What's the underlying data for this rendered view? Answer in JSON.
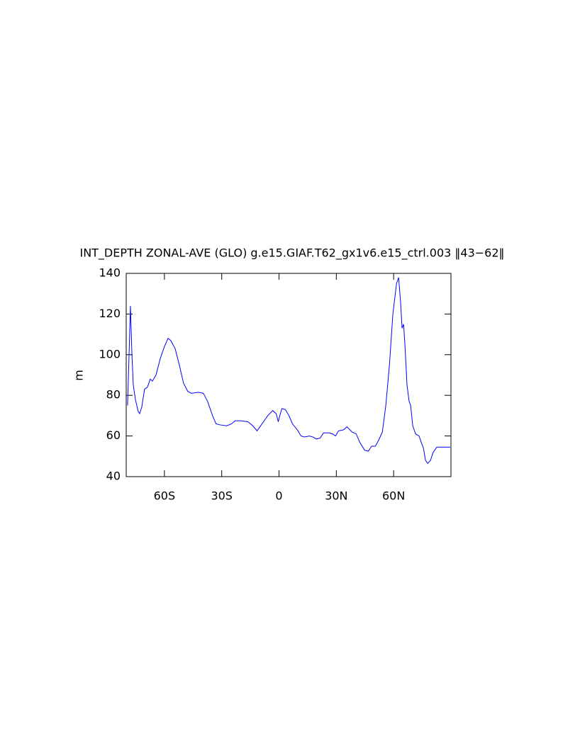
{
  "chart_data": {
    "type": "line",
    "title": "INT_DEPTH ZONAL-AVE (GLO) g.e15.GIAF.T62_gx1v6.e15_ctrl.003 ‖43−62‖",
    "y_label": "m",
    "x": [
      -79.3,
      -78.5,
      -77.8,
      -77.0,
      -76.3,
      -75.2,
      -73.7,
      -73.0,
      -71.9,
      -70.4,
      -68.9,
      -67.4,
      -66.3,
      -64.4,
      -62.2,
      -60,
      -58.1,
      -56.7,
      -54.4,
      -52.2,
      -50,
      -47.8,
      -45.9,
      -42.2,
      -39.6,
      -37.4,
      -34.8,
      -33.0,
      -31.1,
      -27.4,
      -24.8,
      -23.0,
      -20,
      -16.3,
      -13.7,
      -11.5,
      -8.9,
      -5.9,
      -3.3,
      -1.5,
      -0.4,
      0.4,
      1.5,
      3.3,
      5.2,
      7.0,
      9.6,
      11.5,
      13.3,
      15.9,
      17.8,
      19.6,
      21.5,
      23.3,
      26.3,
      28.1,
      29.6,
      31.1,
      33.7,
      35.6,
      38.1,
      40.4,
      42.2,
      44.8,
      46.7,
      48.5,
      50.4,
      52.2,
      54.1,
      55.9,
      57.8,
      59.6,
      61.5,
      62.6,
      63.7,
      64.4,
      65.2,
      65.9,
      67.0,
      68.1,
      68.9,
      70.0,
      71.5,
      73.3,
      74.4,
      75.6,
      76.7,
      77.8,
      79.3,
      80.7,
      82.6,
      85.6,
      89.6
    ],
    "series": [
      {
        "name": "INT_DEPTH",
        "color": "#0000ff",
        "values": [
          75,
          100,
          124,
          100,
          85,
          78,
          72,
          71,
          74,
          83,
          84,
          88,
          87,
          90,
          98,
          104,
          108,
          107,
          103,
          95,
          86,
          82,
          81,
          81.5,
          81,
          77,
          70,
          66,
          65.5,
          65,
          66,
          67.5,
          67.5,
          67,
          65,
          62.5,
          66,
          70,
          72.5,
          71,
          67,
          70,
          73.5,
          73,
          70,
          66,
          63,
          60,
          59.5,
          60,
          59.5,
          58.5,
          59,
          61.5,
          61.5,
          61,
          60,
          62.5,
          63,
          64.5,
          62,
          61,
          57,
          53,
          52.5,
          55,
          55,
          58,
          62,
          75,
          95,
          120,
          135,
          138,
          125,
          113,
          115,
          105,
          85,
          77,
          75,
          65,
          61,
          60,
          57,
          54,
          48,
          46.5,
          48,
          52,
          54.5,
          54.5,
          54.5
        ]
      }
    ],
    "xlim": [
      -80,
      90
    ],
    "xticks": [
      {
        "value": -60,
        "label": "60S"
      },
      {
        "value": -30,
        "label": "30S"
      },
      0,
      {
        "value": 30,
        "label": "30N"
      },
      {
        "value": 60,
        "label": "60N"
      }
    ],
    "ylim": [
      40,
      140
    ],
    "yticks": [
      40,
      60,
      80,
      100,
      120,
      140
    ]
  }
}
